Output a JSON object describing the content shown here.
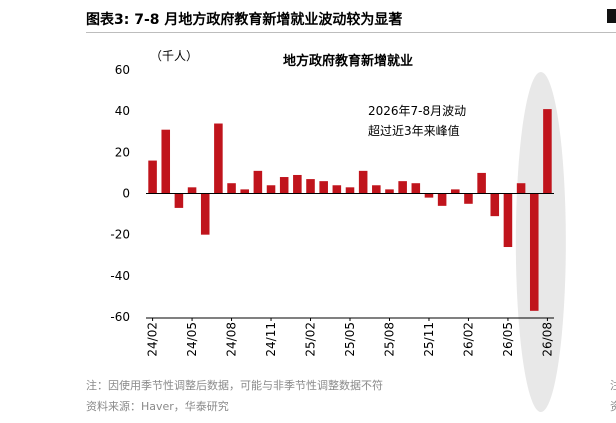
{
  "figure": {
    "label": "图表3:",
    "title": "7-8 月地方政府教育新增就业波动较为显著"
  },
  "notes": {
    "note": "注：因使用季节性调整后数据，可能与非季节性调整数据不符",
    "source": "资料来源：Haver，华泰研究"
  },
  "chart_data": {
    "type": "bar",
    "title": "地方政府教育新增就业",
    "unit_label": "（千人）",
    "ylim": [
      -60,
      60
    ],
    "yticks": [
      60,
      40,
      20,
      0,
      -20,
      -40,
      -60
    ],
    "grid": false,
    "categories": [
      "24/02",
      "24/03",
      "24/04",
      "24/05",
      "24/06",
      "24/07",
      "24/08",
      "24/09",
      "24/10",
      "24/11",
      "24/12",
      "25/01",
      "25/02",
      "25/03",
      "25/04",
      "25/05",
      "25/06",
      "25/07",
      "25/08",
      "25/09",
      "25/10",
      "25/11",
      "25/12",
      "26/01",
      "26/02",
      "26/03",
      "26/04",
      "26/05",
      "26/06",
      "26/07",
      "26/08"
    ],
    "tick_labels": [
      "24/02",
      "24/05",
      "24/08",
      "24/11",
      "25/02",
      "25/05",
      "25/08",
      "25/11",
      "26/02",
      "26/05",
      "26/08"
    ],
    "values": [
      16,
      31,
      -7,
      3,
      -20,
      34,
      5,
      2,
      11,
      4,
      8,
      9,
      7,
      6,
      4,
      3,
      11,
      4,
      2,
      6,
      5,
      -2,
      -6,
      2,
      -5,
      10,
      -11,
      -26,
      5,
      -57,
      41
    ],
    "annotation": [
      "2026年7-8月波动",
      "超过近3年来峰值"
    ],
    "highlight_categories": [
      "26/07",
      "26/08"
    ],
    "colors": {
      "bar": "#c0141c",
      "highlight": "#e6e6e6"
    }
  }
}
